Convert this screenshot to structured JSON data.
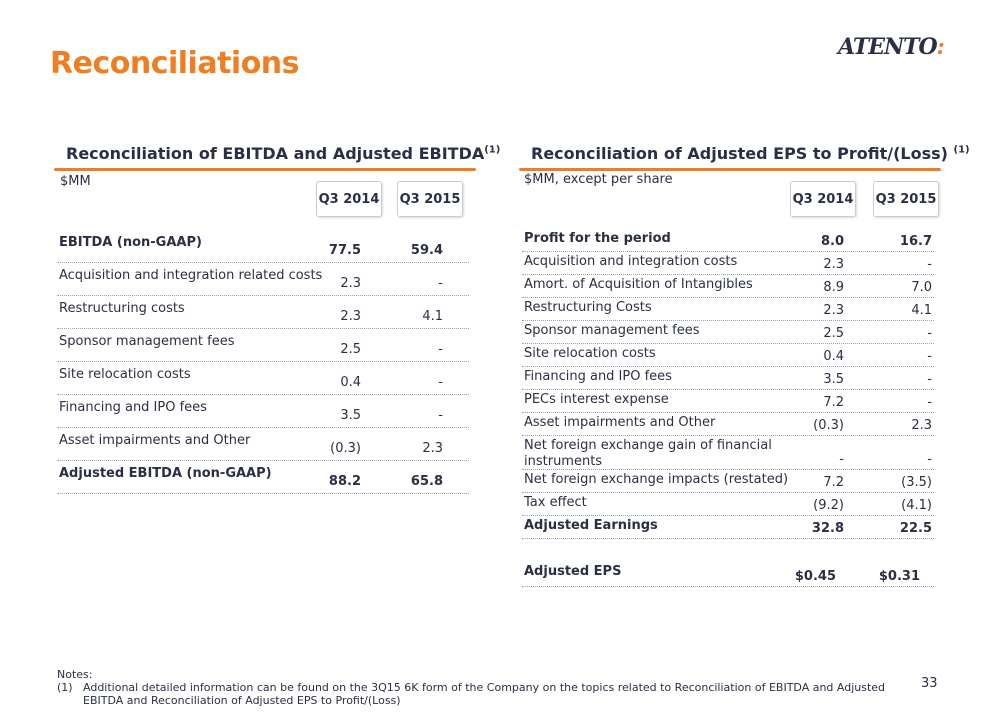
{
  "title": "Reconciliations",
  "logo": {
    "text": "ATENTO",
    "mark": ":"
  },
  "left": {
    "title": "Reconciliation of EBITDA and Adjusted EBITDA",
    "title_sup": "(1)",
    "unit": "$MM",
    "col1": "Q3 2014",
    "col2": "Q3 2015",
    "rows": [
      {
        "label": "EBITDA (non-GAAP)",
        "v1": "77.5",
        "v2": "59.4"
      },
      {
        "label": "Acquisition and integration related costs",
        "v1": "2.3",
        "v2": "-"
      },
      {
        "label": "Restructuring costs",
        "v1": "2.3",
        "v2": "4.1"
      },
      {
        "label": "Sponsor management fees",
        "v1": "2.5",
        "v2": "-"
      },
      {
        "label": "Site relocation costs",
        "v1": "0.4",
        "v2": "-"
      },
      {
        "label": "Financing and IPO fees",
        "v1": "3.5",
        "v2": "-"
      },
      {
        "label": "Asset impairments and Other",
        "v1": "(0.3)",
        "v2": "2.3"
      },
      {
        "label": "Adjusted EBITDA (non-GAAP)",
        "v1": "88.2",
        "v2": "65.8"
      }
    ]
  },
  "right": {
    "title": "Reconciliation of Adjusted EPS to Profit/(Loss)",
    "title_sup": "(1)",
    "unit": "$MM, except per share",
    "col1": "Q3 2014",
    "col2": "Q3 2015",
    "rows": [
      {
        "label": "Profit for the period",
        "v1": "8.0",
        "v2": "16.7"
      },
      {
        "label": "Acquisition and integration costs",
        "v1": "2.3",
        "v2": "-"
      },
      {
        "label": "Amort. of Acquisition of Intangibles",
        "v1": "8.9",
        "v2": "7.0"
      },
      {
        "label": "Restructuring Costs",
        "v1": "2.3",
        "v2": "4.1"
      },
      {
        "label": "Sponsor management fees",
        "v1": "2.5",
        "v2": "-"
      },
      {
        "label": "Site relocation costs",
        "v1": "0.4",
        "v2": "-"
      },
      {
        "label": "Financing and IPO fees",
        "v1": "3.5",
        "v2": "-"
      },
      {
        "label": "PECs interest expense",
        "v1": "7.2",
        "v2": "-"
      },
      {
        "label": "Asset impairments and Other",
        "v1": "(0.3)",
        "v2": "2.3"
      },
      {
        "label": "Net foreign exchange gain of financial instruments",
        "label_line1": "Net foreign exchange gain of financial",
        "label_line2": "instruments",
        "v1": "-",
        "v2": "-"
      },
      {
        "label": "Net foreign exchange impacts (restated)",
        "v1": "7.2",
        "v2": "(3.5)"
      },
      {
        "label": "Tax effect",
        "v1": "(9.2)",
        "v2": "(4.1)"
      },
      {
        "label": "Adjusted Earnings",
        "v1": "32.8",
        "v2": "22.5"
      },
      {
        "label": "Adjusted EPS",
        "v1": "$0.45",
        "v2": "$0.31"
      }
    ]
  },
  "notes": {
    "heading": "Notes:",
    "items": [
      {
        "mark": "(1)",
        "text": "Additional detailed information can be found on the 3Q15 6K form of the Company on the topics related to Reconciliation of EBITDA and Adjusted EBITDA and Reconciliation of Adjusted EPS to Profit/(Loss)"
      }
    ]
  },
  "page_number": "33"
}
